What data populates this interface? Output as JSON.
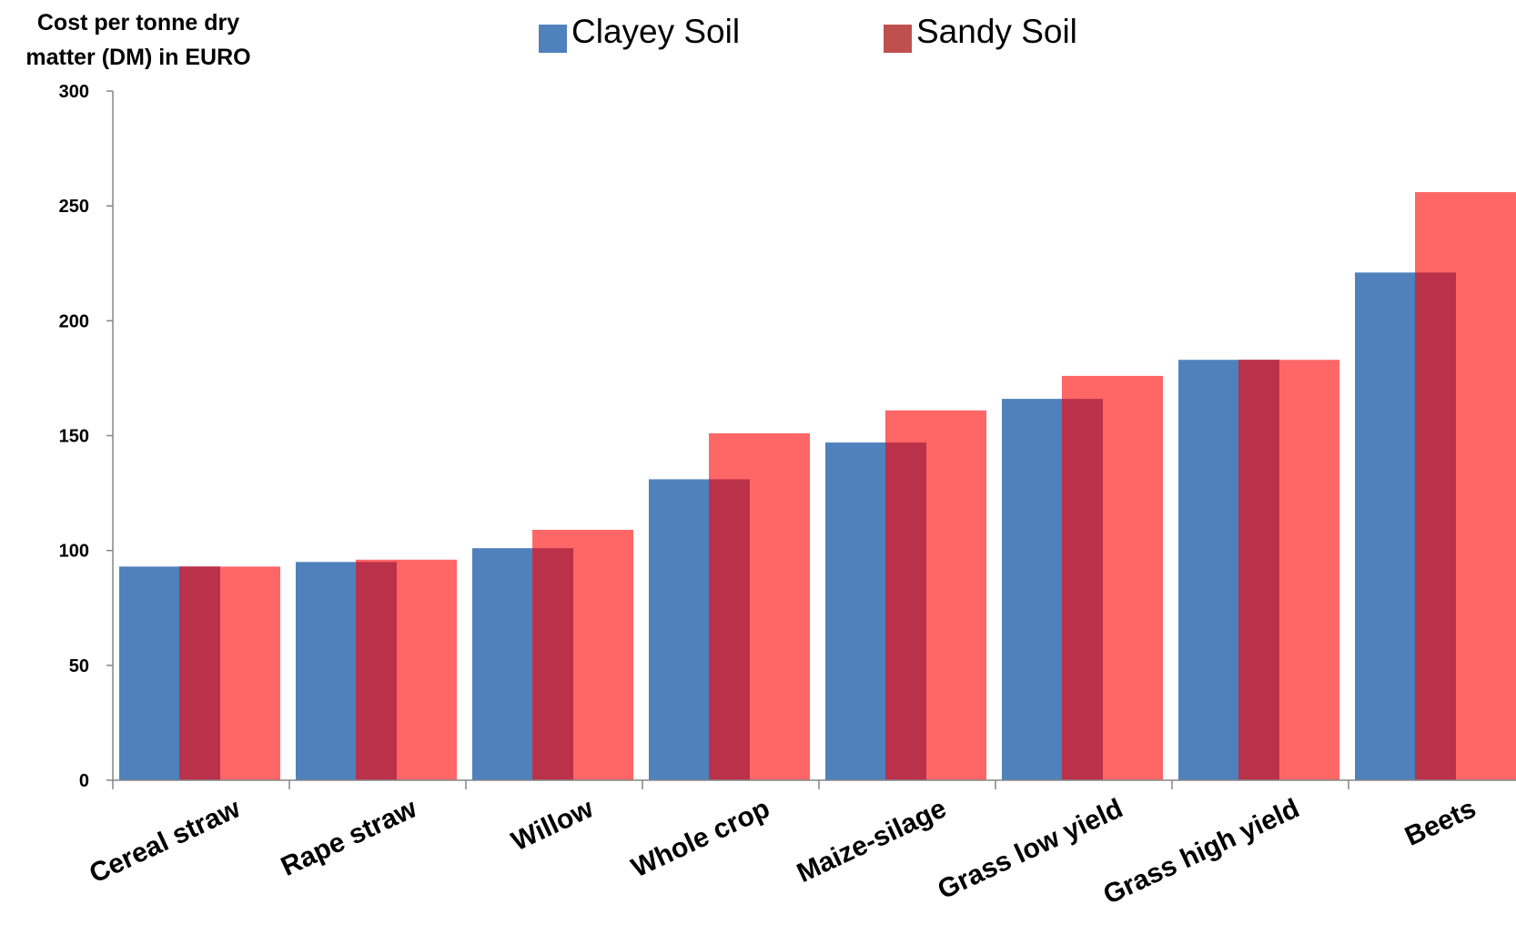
{
  "chart_data": {
    "type": "bar",
    "ylabel": "Cost per tonne dry matter (DM) in EURO",
    "ylabel_lines": [
      "Cost per tonne dry",
      "matter (DM) in EURO"
    ],
    "xlabel": "",
    "ylim": [
      0,
      300
    ],
    "yticks": [
      0,
      50,
      100,
      150,
      200,
      250,
      300
    ],
    "categories": [
      "Cereal straw",
      "Rape straw",
      "Willow",
      "Whole crop",
      "Maize-silage",
      "Grass low yield",
      "Grass high yield",
      "Beets"
    ],
    "series": [
      {
        "name": "Clayey Soil",
        "color": "#4f81bd",
        "values": [
          93,
          95,
          101,
          131,
          147,
          166,
          183,
          221
        ]
      },
      {
        "name": "Sandy Soil",
        "color": "#ff6666",
        "values": [
          93,
          96,
          109,
          151,
          161,
          176,
          183,
          256
        ]
      }
    ],
    "overlap_color": "#b9324a",
    "legend_marker_colors": [
      "#4f81bd",
      "#c0504d"
    ],
    "legend_position": "top",
    "grid": false
  }
}
